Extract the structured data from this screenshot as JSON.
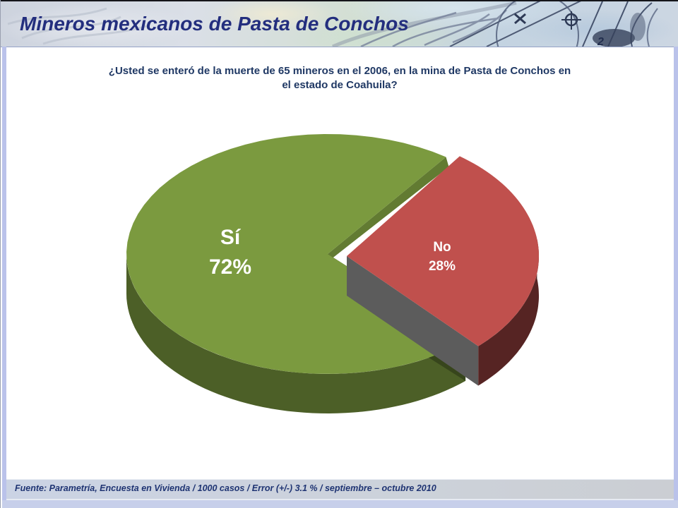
{
  "slide": {
    "header": {
      "title": "Mineros mexicanos de Pasta de Conchos"
    },
    "question": "¿Usted se enteró de la muerte de 65 mineros en el 2006, en la mina de Pasta de Conchos en el estado de Coahuila?",
    "footer": "Fuente: Parametría, Encuesta en Vivienda / 1000 casos / Error (+/-) 3.1 % / septiembre – octubre 2010",
    "colors": {
      "title_text": "#232e7e",
      "question_text": "#1f3864",
      "footer_text": "#1f3473",
      "border_accent": "#bac2ea",
      "label_text": "#ffffff"
    }
  },
  "chart_data": {
    "type": "pie",
    "style": "3d-exploded",
    "title": "¿Usted se enteró de la muerte de 65 mineros en el 2006, en la mina de Pasta de Conchos en el estado de Coahuila?",
    "legend": "none",
    "data_labels": "inside",
    "slices": [
      {
        "label": "Sí",
        "value": 72,
        "display": "72%",
        "color": "#7b9a3f",
        "exploded": false
      },
      {
        "label": "No",
        "value": 28,
        "display": "28%",
        "color": "#c0504d",
        "exploded": true
      }
    ]
  }
}
